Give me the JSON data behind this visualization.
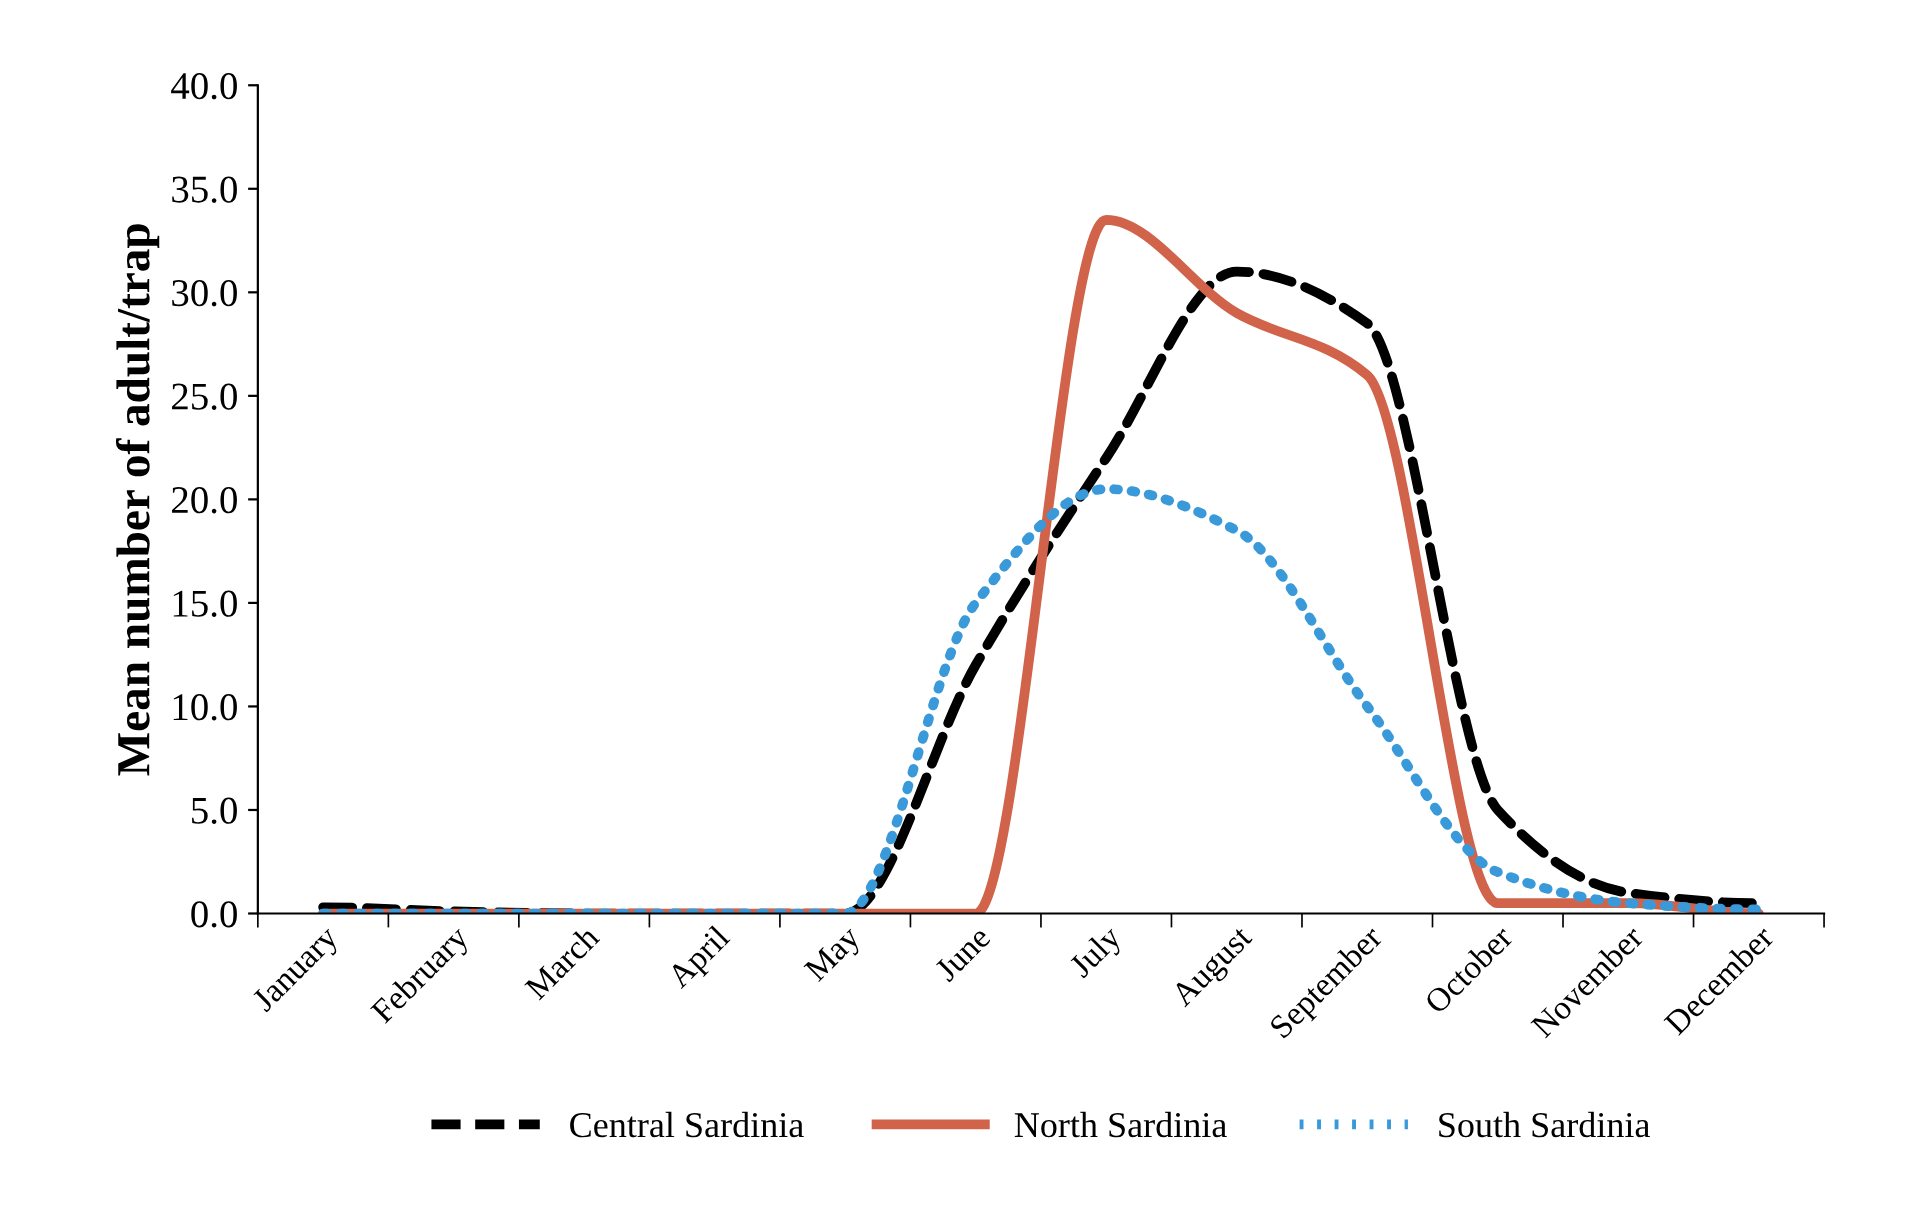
{
  "chart_data": {
    "type": "line",
    "ylabel": "Mean number of adult/trap",
    "categories": [
      "January",
      "February",
      "March",
      "April",
      "May",
      "June",
      "July",
      "August",
      "September",
      "October",
      "November",
      "December"
    ],
    "ylim": [
      0,
      40
    ],
    "yticks": [
      {
        "value": 0,
        "label": "0.0"
      },
      {
        "value": 5,
        "label": "5.0"
      },
      {
        "value": 10,
        "label": "10.0"
      },
      {
        "value": 15,
        "label": "15.0"
      },
      {
        "value": 20,
        "label": "20.0"
      },
      {
        "value": 25,
        "label": "25.0"
      },
      {
        "value": 30,
        "label": "30.0"
      },
      {
        "value": 35,
        "label": "35.0"
      },
      {
        "value": 40,
        "label": "40.0"
      }
    ],
    "grid": false,
    "legend": "bottom",
    "marker": "none",
    "series": [
      {
        "name": "Central Sardinia",
        "color": "#000000",
        "line_style": "dashed",
        "values": [
          0.3,
          0.1,
          0,
          0,
          0,
          12,
          22,
          31,
          28.5,
          5,
          1,
          0.5
        ]
      },
      {
        "name": "North Sardinia",
        "color": "#d0634a",
        "line_style": "solid",
        "values": [
          0,
          0,
          0,
          0,
          0,
          0,
          33.5,
          29,
          26,
          0.5,
          0.5,
          0
        ]
      },
      {
        "name": "South Sardinia",
        "color": "#3a9ad9",
        "line_style": "dotted",
        "values": [
          0,
          0,
          0,
          0,
          0,
          15,
          20.5,
          18.5,
          10,
          2,
          0.5,
          0.2
        ]
      }
    ]
  }
}
